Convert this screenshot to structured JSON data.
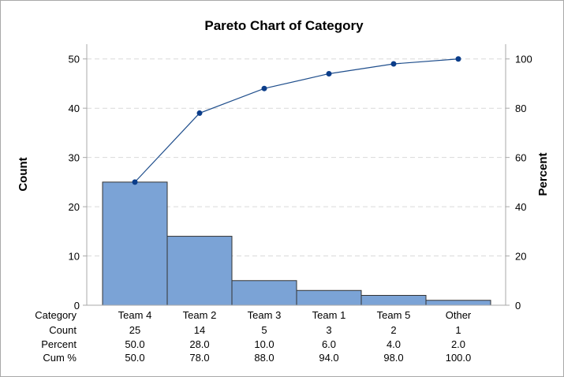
{
  "chart_data": {
    "type": "bar",
    "title": "Pareto Chart of Category",
    "xlabel": "",
    "ylabel": "Count",
    "y2label": "Percent",
    "categories": [
      "Team 4",
      "Team 2",
      "Team 3",
      "Team 1",
      "Team 5",
      "Other"
    ],
    "series": [
      {
        "name": "Count",
        "type": "bar",
        "values": [
          25,
          14,
          5,
          3,
          2,
          1
        ]
      },
      {
        "name": "Cum %",
        "type": "line",
        "axis": "right",
        "values": [
          50.0,
          78.0,
          88.0,
          94.0,
          98.0,
          100.0
        ]
      }
    ],
    "ylim": [
      0,
      53
    ],
    "y2lim": [
      0,
      106
    ],
    "yticks": [
      "0",
      "10",
      "20",
      "30",
      "40",
      "50"
    ],
    "y2ticks": [
      "0",
      "20",
      "40",
      "60",
      "80",
      "100"
    ],
    "grid": true,
    "colors": {
      "bar_fill": "#7ba3d6",
      "bar_edge": "#333333",
      "line": "#1f4e8c",
      "marker": "#0b3d8a",
      "grid": "#d9d9d9",
      "frame": "#a9a9a9"
    },
    "table": {
      "row_labels": [
        "Category",
        "Count",
        "Percent",
        "Cum %"
      ],
      "count": [
        "25",
        "14",
        "5",
        "3",
        "2",
        "1"
      ],
      "percent": [
        "50.0",
        "28.0",
        "10.0",
        "6.0",
        "4.0",
        "2.0"
      ],
      "cum_percent": [
        "50.0",
        "78.0",
        "88.0",
        "94.0",
        "98.0",
        "100.0"
      ]
    }
  }
}
